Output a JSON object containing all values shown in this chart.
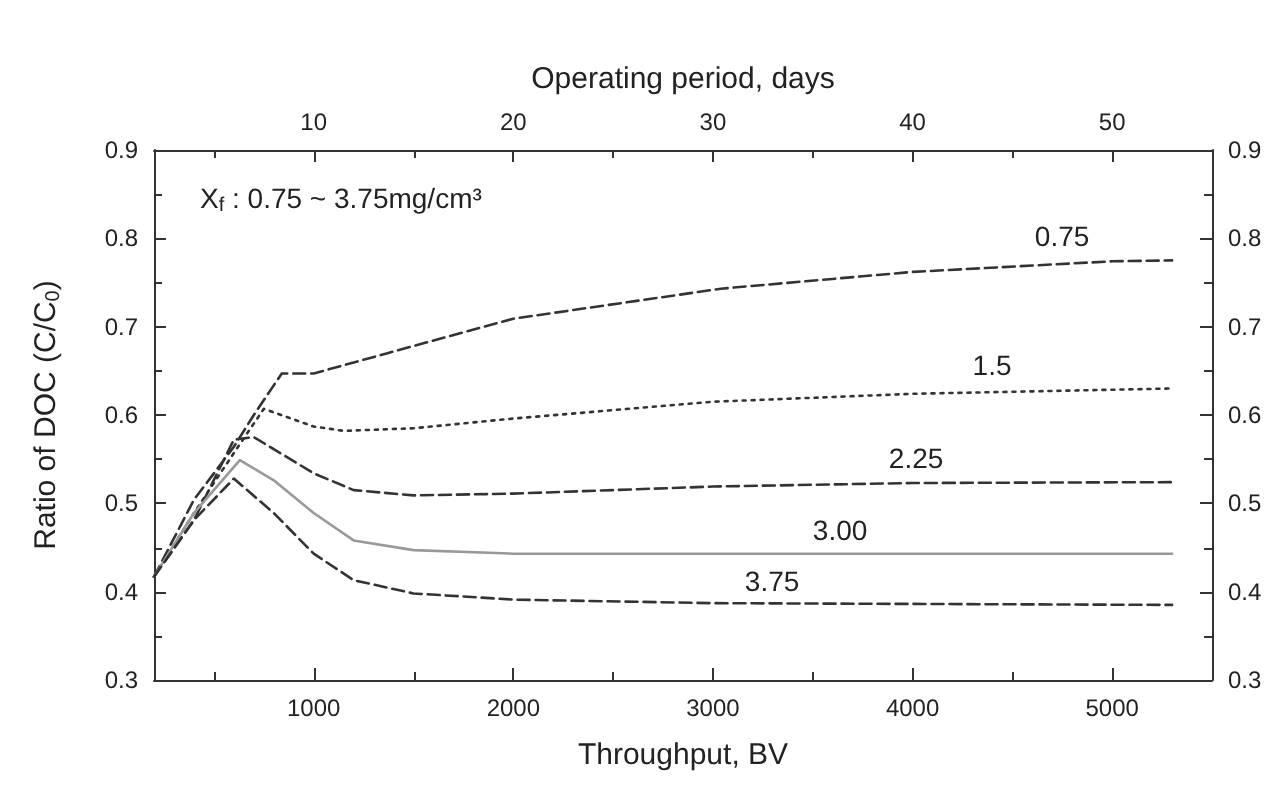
{
  "chart_data": {
    "type": "line",
    "xlabel": "Throughput, BV",
    "ylabel": "Ratio of DOC (C/C$_{0}$)",
    "x2label": "Operating period, days",
    "xlim": [
      200,
      5500
    ],
    "xticks": [
      1000,
      2000,
      3000,
      4000,
      5000
    ],
    "x2lim": [
      2,
      55
    ],
    "x2ticks": [
      10,
      20,
      30,
      40,
      50
    ],
    "ylim": [
      0.3,
      0.9
    ],
    "yticks": [
      0.3,
      0.4,
      0.5,
      0.6,
      0.7,
      0.8,
      0.9
    ],
    "y2lim": [
      0.3,
      0.9
    ],
    "y2ticks": [
      0.3,
      0.4,
      0.5,
      0.6,
      0.7,
      0.8,
      0.9
    ],
    "grid": false,
    "legend": false,
    "marker": "none",
    "annotations": [
      "X$_{f}$ : 0.75 ~ 3.75mg/cm³"
    ],
    "series": [
      {
        "name": "0.75",
        "color": "#333333",
        "line_style": "dashed",
        "x": [
          200,
          400,
          600,
          700,
          840,
          1000,
          1370,
          2000,
          3040,
          4000,
          5000,
          5300
        ],
        "values": [
          0.417,
          0.504,
          0.564,
          0.6,
          0.647,
          0.647,
          0.67,
          0.709,
          0.743,
          0.762,
          0.774,
          0.775
        ]
      },
      {
        "name": "1.5",
        "color": "#333333",
        "line_style": "dotted",
        "x": [
          200,
          400,
          600,
          750,
          1000,
          1150,
          1500,
          2000,
          3000,
          4000,
          5300
        ],
        "values": [
          0.417,
          0.489,
          0.557,
          0.607,
          0.587,
          0.582,
          0.585,
          0.596,
          0.615,
          0.624,
          0.63
        ]
      },
      {
        "name": "2.25",
        "color": "#333333",
        "line_style": "dashed",
        "x": [
          200,
          400,
          600,
          700,
          1000,
          1200,
          1500,
          2000,
          3000,
          4000,
          5300
        ],
        "values": [
          0.417,
          0.481,
          0.572,
          0.575,
          0.534,
          0.515,
          0.509,
          0.511,
          0.519,
          0.523,
          0.524
        ]
      },
      {
        "name": "3.00",
        "color": "#999999",
        "line_style": "solid",
        "x": [
          200,
          400,
          630,
          800,
          1000,
          1200,
          1500,
          2000,
          5300
        ],
        "values": [
          0.417,
          0.489,
          0.549,
          0.526,
          0.489,
          0.458,
          0.447,
          0.443,
          0.443
        ]
      },
      {
        "name": "3.75",
        "color": "#333333",
        "line_style": "dashed",
        "x": [
          200,
          400,
          600,
          800,
          1000,
          1200,
          1500,
          2000,
          3000,
          5300
        ],
        "values": [
          0.417,
          0.481,
          0.528,
          0.489,
          0.443,
          0.413,
          0.398,
          0.391,
          0.387,
          0.385
        ]
      }
    ]
  }
}
